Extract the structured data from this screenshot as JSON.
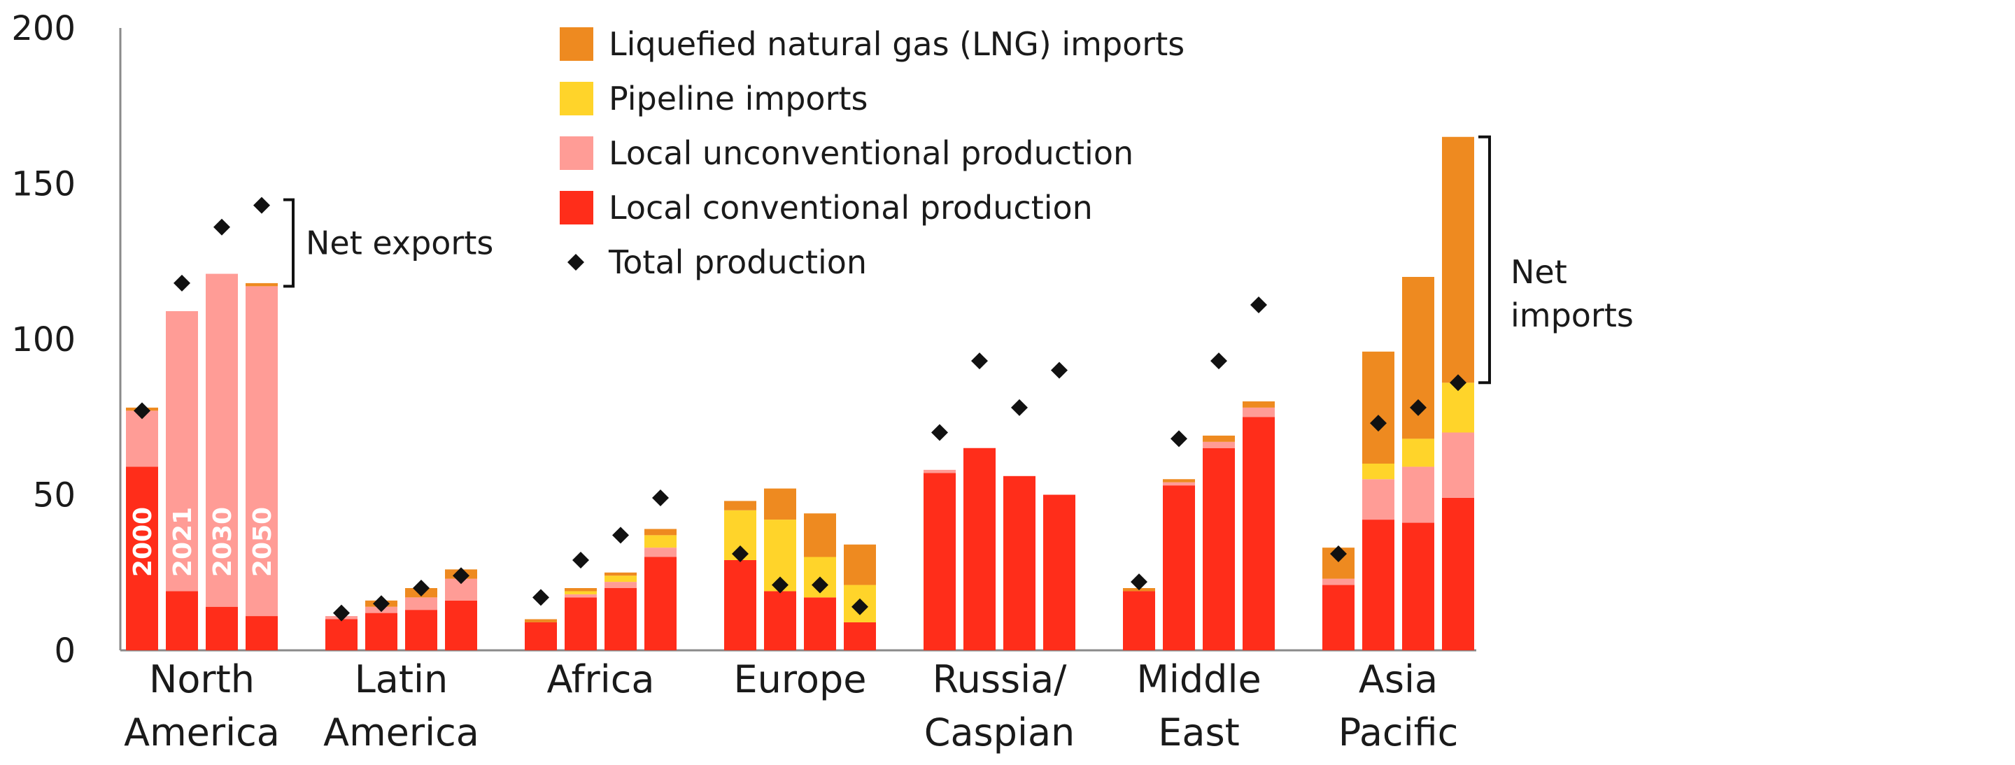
{
  "chart_data": {
    "type": "bar",
    "stacked": true,
    "title": "",
    "xlabel": "",
    "ylabel": "",
    "ylim": [
      0,
      200
    ],
    "yticks": [
      0,
      50,
      100,
      150,
      200
    ],
    "regions": [
      {
        "name": "North America",
        "label_lines": [
          "North",
          "America"
        ]
      },
      {
        "name": "Latin America",
        "label_lines": [
          "Latin",
          "America"
        ]
      },
      {
        "name": "Africa",
        "label_lines": [
          "Africa"
        ]
      },
      {
        "name": "Europe",
        "label_lines": [
          "Europe"
        ]
      },
      {
        "name": "Russia/Caspian",
        "label_lines": [
          "Russia/",
          "Caspian"
        ]
      },
      {
        "name": "Middle East",
        "label_lines": [
          "Middle",
          "East"
        ]
      },
      {
        "name": "Asia Pacific",
        "label_lines": [
          "Asia",
          "Pacific"
        ]
      }
    ],
    "years": [
      "2000",
      "2021",
      "2030",
      "2050"
    ],
    "series": [
      {
        "name": "Local conventional production",
        "color": "#ff2d1a",
        "values": [
          [
            59,
            19,
            14,
            11
          ],
          [
            10,
            12,
            13,
            16
          ],
          [
            9,
            17,
            20,
            30
          ],
          [
            29,
            19,
            17,
            9
          ],
          [
            57,
            65,
            56,
            50
          ],
          [
            19,
            53,
            65,
            75
          ],
          [
            21,
            42,
            41,
            49
          ]
        ]
      },
      {
        "name": "Local unconventional production",
        "color": "#ff9c96",
        "values": [
          [
            18,
            90,
            107,
            106
          ],
          [
            1,
            2,
            4,
            7
          ],
          [
            0,
            1,
            2,
            3
          ],
          [
            0,
            0,
            0,
            0
          ],
          [
            1,
            0,
            0,
            0
          ],
          [
            0,
            1,
            2,
            3
          ],
          [
            2,
            13,
            18,
            21
          ]
        ]
      },
      {
        "name": "Pipeline imports",
        "color": "#ffd42a",
        "values": [
          [
            0,
            0,
            0,
            0
          ],
          [
            0,
            0,
            0,
            0
          ],
          [
            0,
            1,
            2,
            4
          ],
          [
            16,
            23,
            13,
            12
          ],
          [
            0,
            0,
            0,
            0
          ],
          [
            0,
            0,
            0,
            0
          ],
          [
            0,
            5,
            9,
            16
          ]
        ]
      },
      {
        "name": "Liquefied natural gas (LNG) imports",
        "color": "#ee8a20",
        "values": [
          [
            1,
            0,
            0,
            1
          ],
          [
            0,
            2,
            3,
            3
          ],
          [
            1,
            1,
            1,
            2
          ],
          [
            3,
            10,
            14,
            13
          ],
          [
            0,
            0,
            0,
            0
          ],
          [
            1,
            1,
            2,
            2
          ],
          [
            10,
            36,
            52,
            79
          ]
        ]
      }
    ],
    "total_production": {
      "name": "Total production",
      "color": "#111111",
      "values": [
        [
          77,
          118,
          136,
          143
        ],
        [
          12,
          15,
          20,
          24
        ],
        [
          17,
          29,
          37,
          49
        ],
        [
          31,
          21,
          21,
          14
        ],
        [
          70,
          93,
          78,
          90
        ],
        [
          22,
          68,
          93,
          111
        ],
        [
          31,
          73,
          78,
          86
        ]
      ]
    },
    "legend": {
      "placement": "top-center",
      "items": [
        {
          "label": "Liquefied natural gas (LNG) imports",
          "color": "#ee8a20",
          "marker": "square"
        },
        {
          "label": "Pipeline imports",
          "color": "#ffd42a",
          "marker": "square"
        },
        {
          "label": "Local unconventional production",
          "color": "#ff9c96",
          "marker": "square"
        },
        {
          "label": "Local conventional production",
          "color": "#ff2d1a",
          "marker": "square"
        },
        {
          "label": "Total production",
          "color": "#111111",
          "marker": "diamond"
        }
      ]
    },
    "annotations": {
      "net_exports": {
        "text": "Net exports",
        "region": "North America",
        "year": "2050",
        "from_value": 117,
        "to_value": 143
      },
      "net_imports": {
        "lines": [
          "Net",
          "imports"
        ],
        "region": "Asia Pacific",
        "year": "2050",
        "from_value": 86,
        "to_value": 165
      }
    }
  }
}
